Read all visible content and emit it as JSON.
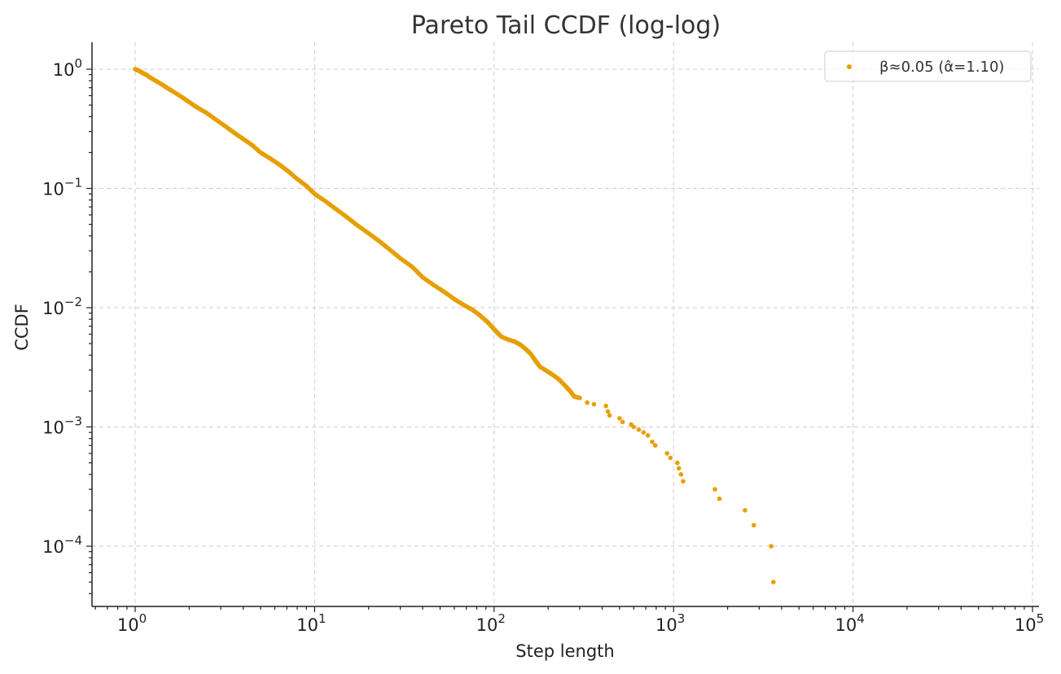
{
  "chart_data": {
    "type": "scatter",
    "title": "Pareto Tail CCDF (log-log)",
    "xlabel": "Step length",
    "ylabel": "CCDF",
    "x_scale": "log",
    "y_scale": "log",
    "xlim": [
      0.6,
      110000
    ],
    "ylim": [
      3e-05,
      1.6
    ],
    "x_ticks": [
      {
        "value": 1,
        "base": "10",
        "exp": "0"
      },
      {
        "value": 10,
        "base": "10",
        "exp": "1"
      },
      {
        "value": 100,
        "base": "10",
        "exp": "2"
      },
      {
        "value": 1000,
        "base": "10",
        "exp": "3"
      },
      {
        "value": 10000,
        "base": "10",
        "exp": "4"
      },
      {
        "value": 100000,
        "base": "10",
        "exp": "5"
      }
    ],
    "y_ticks": [
      {
        "value": 1,
        "base": "10",
        "exp": "0"
      },
      {
        "value": 0.1,
        "base": "10",
        "exp": "−1"
      },
      {
        "value": 0.01,
        "base": "10",
        "exp": "−2"
      },
      {
        "value": 0.001,
        "base": "10",
        "exp": "−3"
      },
      {
        "value": 0.0001,
        "base": "10",
        "exp": "−4"
      }
    ],
    "grid": true,
    "legend_position": "top-right",
    "series": [
      {
        "name": "β≈0.05 (α̂=1.10)",
        "color": "#E69F00",
        "marker": "circle",
        "x": [
          1.0,
          1.05,
          1.1,
          1.15,
          1.2,
          1.3,
          1.4,
          1.5,
          1.6,
          1.8,
          2.0,
          2.2,
          2.5,
          2.8,
          3.2,
          3.6,
          4.0,
          4.5,
          5.0,
          5.6,
          6.3,
          7.1,
          8.0,
          9.0,
          10.0,
          11.5,
          13.0,
          15.0,
          17.0,
          20.0,
          23.0,
          26.0,
          30.0,
          35.0,
          40.0,
          46.0,
          53.0,
          60.0,
          68.0,
          75.0,
          82.0,
          90.0,
          95.0,
          100.0,
          105.0,
          110.0,
          120.0,
          130.0,
          140.0,
          150.0,
          160.0,
          170.0,
          180.0,
          200.0,
          215.0,
          230.0,
          250.0,
          265.0,
          280.0,
          300.0,
          330.0,
          360.0,
          420.0,
          430.0,
          440.0,
          500.0,
          520.0,
          580.0,
          600.0,
          640.0,
          680.0,
          720.0,
          760.0,
          790.0,
          920.0,
          960.0,
          1050.0,
          1070.0,
          1100.0,
          1130.0,
          1700.0,
          1800.0,
          2500.0,
          2800.0,
          3500.0,
          3600.0
        ],
        "y": [
          1.0,
          0.97,
          0.93,
          0.9,
          0.86,
          0.8,
          0.75,
          0.7,
          0.66,
          0.59,
          0.53,
          0.48,
          0.43,
          0.38,
          0.33,
          0.29,
          0.26,
          0.23,
          0.2,
          0.18,
          0.16,
          0.14,
          0.12,
          0.105,
          0.09,
          0.078,
          0.068,
          0.058,
          0.05,
          0.042,
          0.036,
          0.031,
          0.026,
          0.022,
          0.018,
          0.0155,
          0.0135,
          0.0118,
          0.0105,
          0.0097,
          0.0088,
          0.0078,
          0.0072,
          0.0066,
          0.0061,
          0.0057,
          0.0054,
          0.0052,
          0.0049,
          0.0045,
          0.0041,
          0.0036,
          0.0032,
          0.0029,
          0.0027,
          0.0025,
          0.0022,
          0.002,
          0.0018,
          0.00175,
          0.0016,
          0.00155,
          0.0015,
          0.00135,
          0.00125,
          0.00118,
          0.0011,
          0.00105,
          0.001,
          0.00095,
          0.0009,
          0.00085,
          0.00075,
          0.0007,
          0.0006,
          0.00055,
          0.0005,
          0.00045,
          0.0004,
          0.00035,
          0.0003,
          0.00025,
          0.0002,
          0.00015,
          0.0001,
          5e-05
        ]
      }
    ]
  }
}
